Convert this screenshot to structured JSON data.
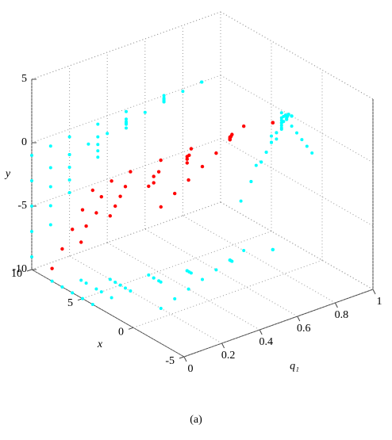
{
  "chart_data": {
    "type": "scatter3d",
    "xlabel": "q₁",
    "ylabel": "x",
    "zlabel": "y",
    "caption": "(a)",
    "xlim": [
      0,
      1
    ],
    "xticks": [
      0,
      0.2,
      0.4,
      0.6,
      0.8,
      1
    ],
    "ylim": [
      -5,
      10
    ],
    "yticks": [
      -5,
      0,
      5,
      10
    ],
    "zlim": [
      -10,
      5
    ],
    "zticks": [
      -10,
      -5,
      0,
      5
    ],
    "grid": true,
    "color": "#ff0000",
    "projection_color": "#00ffff",
    "series": [
      {
        "x": [
          0,
          0.1,
          0.2,
          0.35,
          0.5,
          0.7,
          0.9
        ],
        "y": [
          8,
          7,
          6,
          5,
          4,
          3.5,
          3
        ],
        "z": [
          -9,
          -7,
          -5,
          -3,
          -1.5,
          -0.5,
          0
        ]
      },
      {
        "x": [
          0,
          0.1,
          0.2,
          0.35,
          0.5,
          0.7,
          0.9
        ],
        "y": [
          7,
          6.5,
          5.5,
          4.5,
          4,
          3.5,
          3
        ],
        "z": [
          -7,
          -5.5,
          -4,
          -2.5,
          -1.2,
          -0.4,
          0
        ]
      },
      {
        "x": [
          0,
          0.1,
          0.2,
          0.35,
          0.5,
          0.7,
          0.9
        ],
        "y": [
          6,
          5.5,
          5,
          4.5,
          4,
          3.5,
          3
        ],
        "z": [
          -5,
          -4,
          -3,
          -2,
          -1,
          -0.3,
          0
        ]
      },
      {
        "x": [
          0,
          0.1,
          0.2,
          0.35,
          0.5,
          0.7,
          0.9
        ],
        "y": [
          5,
          5,
          4.5,
          4,
          3.8,
          3.4,
          3
        ],
        "z": [
          -3,
          -2.5,
          -2,
          -1.4,
          -0.8,
          -0.2,
          0
        ]
      },
      {
        "x": [
          0,
          0.1,
          0.2,
          0.35,
          0.5,
          0.7,
          0.9
        ],
        "y": [
          4,
          4,
          4,
          3.8,
          3.6,
          3.3,
          3
        ],
        "z": [
          -1,
          -0.8,
          -0.6,
          -0.4,
          -0.2,
          0,
          0
        ]
      },
      {
        "x": [
          0.2,
          0.3,
          0.4,
          0.5,
          0.6,
          0.7,
          0.8
        ],
        "y": [
          1,
          1.5,
          2,
          2.5,
          3,
          3.5,
          4
        ],
        "z": [
          -2,
          -1.7,
          -1.4,
          -1.1,
          -0.8,
          -0.5,
          -0.2
        ]
      }
    ]
  }
}
